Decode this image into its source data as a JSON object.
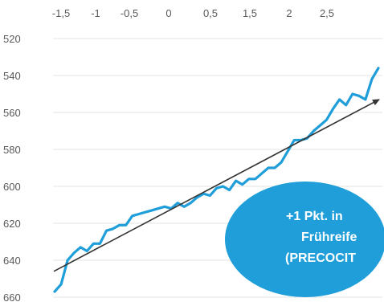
{
  "chart_data": {
    "type": "line",
    "x_ticks": [
      "-1,5",
      "-1",
      "-0,5",
      "0",
      "0,5",
      "1,5",
      "2",
      "2,5"
    ],
    "y_ticks": [
      "520",
      "540",
      "560",
      "580",
      "600",
      "620",
      "640",
      "660"
    ],
    "y_tick_values": [
      520,
      540,
      560,
      580,
      600,
      620,
      640,
      660
    ],
    "ylim": [
      660,
      520
    ],
    "y_reversed": true,
    "grid": "horizontal",
    "series": [
      {
        "color": "#1F9ED9",
        "values": [
          657,
          653,
          640,
          636,
          633,
          635,
          631,
          631,
          624,
          623,
          621,
          621,
          616,
          615,
          614,
          613,
          612,
          611,
          612,
          609,
          611,
          609,
          606,
          604,
          605,
          601,
          600,
          602,
          597,
          599,
          596,
          596,
          593,
          590,
          590,
          587,
          581,
          575,
          575,
          574,
          570,
          567,
          564,
          558,
          553,
          556,
          550,
          551,
          553,
          542,
          536
        ]
      }
    ],
    "trend_line": {
      "color": "#333333",
      "y_start": 646,
      "y_end": 553
    },
    "callout": {
      "lines": [
        "+1 Pkt. in",
        "Frühreife",
        "(PRECOCIT"
      ],
      "fill": "#1F9ED9",
      "text_color": "#ffffff"
    }
  }
}
